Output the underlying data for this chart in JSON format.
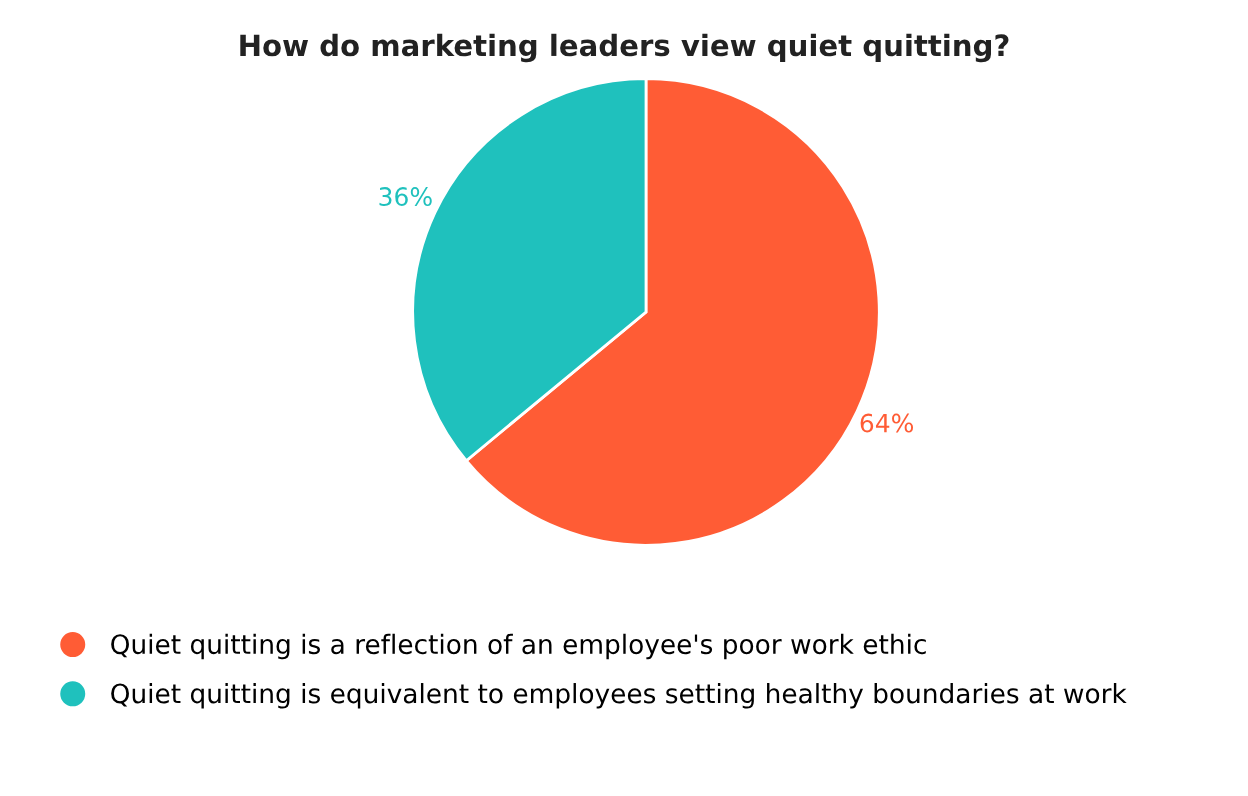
{
  "chart_data": {
    "type": "pie",
    "title": "How do marketing leaders view quiet quitting?",
    "categories": [
      "Quiet quitting is a reflection of an employee's poor work ethic",
      "Quiet quitting is equivalent to employees setting healthy boundaries at work"
    ],
    "values": [
      64,
      36
    ],
    "colors": [
      "#ff5c35",
      "#1fc1bd"
    ],
    "value_labels": [
      "64%",
      "36%"
    ],
    "legend": "bottom"
  }
}
